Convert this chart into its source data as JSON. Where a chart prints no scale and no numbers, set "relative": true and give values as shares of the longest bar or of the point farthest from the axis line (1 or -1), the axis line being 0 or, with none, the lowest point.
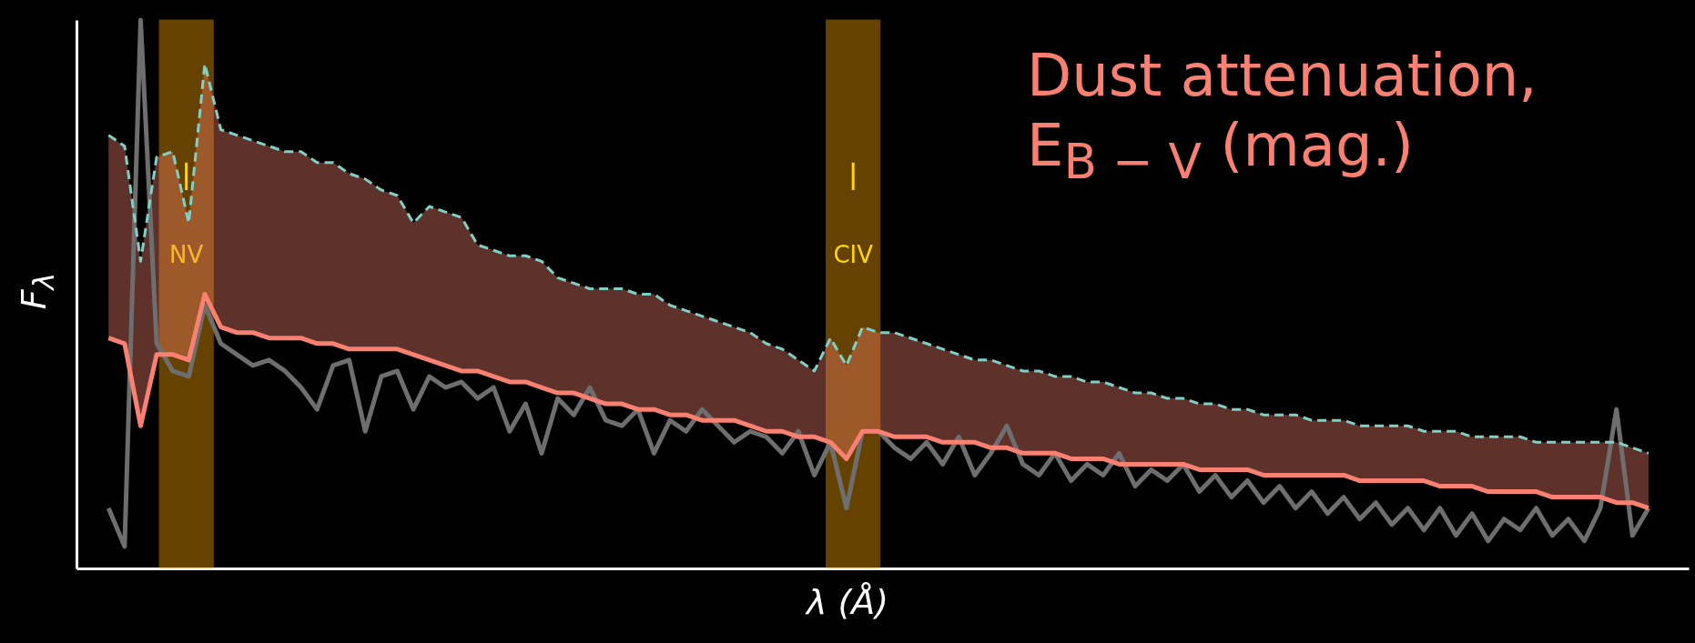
{
  "chart_data": {
    "type": "line",
    "relative": true,
    "xlabel": "λ (Å)",
    "ylabel": "F$_{λ}$",
    "grid": false,
    "categories": [
      null,
      null,
      null,
      null,
      null,
      null,
      null,
      null,
      null,
      null,
      null,
      null,
      null,
      null,
      null,
      null,
      null,
      null,
      null,
      null,
      null,
      null,
      null,
      null,
      null,
      null,
      null,
      null,
      null,
      null,
      null,
      null,
      null,
      null,
      null,
      null,
      null,
      null,
      null,
      null,
      null,
      null,
      null,
      null,
      null,
      null,
      null,
      null,
      null,
      null,
      null,
      null,
      null,
      null,
      null,
      null,
      null,
      null,
      null,
      null,
      null,
      null,
      null,
      null,
      null,
      null,
      null,
      null,
      null,
      null,
      null,
      null,
      null,
      null,
      null,
      null,
      null,
      null,
      null,
      null,
      null,
      null,
      null,
      null,
      null,
      null,
      null,
      null,
      null,
      null,
      null,
      null,
      null,
      null,
      null,
      null,
      null
    ],
    "series": [
      {
        "color": "#6e6e6e",
        "values": [
          0.11,
          0.04,
          1.0,
          0.41,
          0.36,
          0.35,
          0.48,
          0.41,
          0.39,
          0.37,
          0.38,
          0.36,
          0.33,
          0.29,
          0.37,
          0.38,
          0.25,
          0.35,
          0.36,
          0.29,
          0.35,
          0.33,
          0.34,
          0.31,
          0.33,
          0.25,
          0.3,
          0.21,
          0.31,
          0.28,
          0.33,
          0.27,
          0.26,
          0.29,
          0.21,
          0.27,
          0.25,
          0.29,
          0.26,
          0.23,
          0.25,
          0.24,
          0.21,
          0.25,
          0.17,
          0.23,
          0.11,
          0.25,
          0.25,
          0.22,
          0.2,
          0.23,
          0.19,
          0.24,
          0.17,
          0.21,
          0.26,
          0.19,
          0.17,
          0.21,
          0.16,
          0.19,
          0.17,
          0.21,
          0.15,
          0.18,
          0.16,
          0.19,
          0.14,
          0.17,
          0.13,
          0.16,
          0.12,
          0.15,
          0.11,
          0.14,
          0.1,
          0.13,
          0.09,
          0.12,
          0.08,
          0.11,
          0.07,
          0.11,
          0.06,
          0.1,
          0.05,
          0.09,
          0.07,
          0.11,
          0.06,
          0.09,
          0.05,
          0.11,
          0.29,
          0.06,
          0.11
        ]
      },
      {
        "color": "#7fd1c8",
        "line_style": "dashed",
        "values": [
          0.79,
          0.77,
          0.56,
          0.75,
          0.76,
          0.63,
          0.92,
          0.8,
          0.79,
          0.78,
          0.77,
          0.76,
          0.76,
          0.74,
          0.74,
          0.72,
          0.71,
          0.69,
          0.68,
          0.63,
          0.66,
          0.65,
          0.64,
          0.59,
          0.58,
          0.57,
          0.57,
          0.56,
          0.53,
          0.52,
          0.51,
          0.51,
          0.51,
          0.5,
          0.5,
          0.48,
          0.47,
          0.46,
          0.45,
          0.44,
          0.43,
          0.41,
          0.4,
          0.38,
          0.36,
          0.42,
          0.37,
          0.44,
          0.43,
          0.43,
          0.42,
          0.41,
          0.4,
          0.39,
          0.38,
          0.38,
          0.37,
          0.36,
          0.36,
          0.35,
          0.35,
          0.34,
          0.34,
          0.33,
          0.32,
          0.32,
          0.31,
          0.31,
          0.3,
          0.3,
          0.29,
          0.29,
          0.28,
          0.28,
          0.28,
          0.27,
          0.27,
          0.27,
          0.26,
          0.26,
          0.26,
          0.26,
          0.25,
          0.25,
          0.25,
          0.24,
          0.24,
          0.24,
          0.24,
          0.23,
          0.23,
          0.23,
          0.23,
          0.23,
          0.23,
          0.22,
          0.21
        ]
      },
      {
        "color": "#fa8072",
        "values": [
          0.42,
          0.41,
          0.26,
          0.39,
          0.39,
          0.38,
          0.5,
          0.44,
          0.43,
          0.43,
          0.42,
          0.42,
          0.42,
          0.41,
          0.41,
          0.4,
          0.4,
          0.4,
          0.4,
          0.39,
          0.38,
          0.37,
          0.36,
          0.36,
          0.35,
          0.34,
          0.34,
          0.33,
          0.32,
          0.32,
          0.31,
          0.3,
          0.3,
          0.29,
          0.29,
          0.28,
          0.28,
          0.27,
          0.27,
          0.27,
          0.26,
          0.25,
          0.25,
          0.24,
          0.24,
          0.23,
          0.2,
          0.25,
          0.25,
          0.24,
          0.24,
          0.24,
          0.23,
          0.23,
          0.23,
          0.22,
          0.22,
          0.21,
          0.21,
          0.21,
          0.2,
          0.2,
          0.2,
          0.19,
          0.19,
          0.19,
          0.19,
          0.19,
          0.18,
          0.18,
          0.18,
          0.18,
          0.17,
          0.17,
          0.17,
          0.17,
          0.17,
          0.17,
          0.16,
          0.16,
          0.16,
          0.16,
          0.16,
          0.15,
          0.15,
          0.15,
          0.14,
          0.14,
          0.14,
          0.14,
          0.13,
          0.13,
          0.13,
          0.13,
          0.12,
          0.12,
          0.11
        ],
        "lower": [
          0.42,
          0.41,
          0.26,
          0.39,
          0.39,
          0.38,
          0.5,
          0.44,
          0.43,
          0.43,
          0.42,
          0.42,
          0.42,
          0.41,
          0.41,
          0.4,
          0.4,
          0.4,
          0.4,
          0.39,
          0.38,
          0.37,
          0.36,
          0.36,
          0.35,
          0.34,
          0.34,
          0.33,
          0.32,
          0.32,
          0.31,
          0.3,
          0.3,
          0.29,
          0.29,
          0.28,
          0.28,
          0.27,
          0.27,
          0.27,
          0.26,
          0.25,
          0.25,
          0.24,
          0.24,
          0.23,
          0.2,
          0.25,
          0.25,
          0.24,
          0.24,
          0.24,
          0.23,
          0.23,
          0.23,
          0.22,
          0.22,
          0.21,
          0.21,
          0.21,
          0.2,
          0.2,
          0.2,
          0.19,
          0.19,
          0.19,
          0.19,
          0.19,
          0.18,
          0.18,
          0.18,
          0.18,
          0.17,
          0.17,
          0.17,
          0.17,
          0.17,
          0.17,
          0.16,
          0.16,
          0.16,
          0.16,
          0.16,
          0.15,
          0.15,
          0.15,
          0.14,
          0.14,
          0.14,
          0.14,
          0.13,
          0.13,
          0.13,
          0.13,
          0.12,
          0.12,
          0.11
        ],
        "upper": [
          0.79,
          0.77,
          0.56,
          0.75,
          0.76,
          0.63,
          0.92,
          0.8,
          0.79,
          0.78,
          0.77,
          0.76,
          0.76,
          0.74,
          0.74,
          0.72,
          0.71,
          0.69,
          0.68,
          0.63,
          0.66,
          0.65,
          0.64,
          0.59,
          0.58,
          0.57,
          0.57,
          0.56,
          0.53,
          0.52,
          0.51,
          0.51,
          0.51,
          0.5,
          0.5,
          0.48,
          0.47,
          0.46,
          0.45,
          0.44,
          0.43,
          0.41,
          0.4,
          0.38,
          0.36,
          0.42,
          0.37,
          0.44,
          0.43,
          0.43,
          0.42,
          0.41,
          0.4,
          0.39,
          0.38,
          0.38,
          0.37,
          0.36,
          0.36,
          0.35,
          0.35,
          0.34,
          0.34,
          0.33,
          0.32,
          0.32,
          0.31,
          0.31,
          0.3,
          0.3,
          0.29,
          0.29,
          0.28,
          0.28,
          0.28,
          0.27,
          0.27,
          0.27,
          0.26,
          0.26,
          0.26,
          0.26,
          0.25,
          0.25,
          0.25,
          0.24,
          0.24,
          0.24,
          0.24,
          0.23,
          0.23,
          0.23,
          0.23,
          0.23,
          0.23,
          0.22,
          0.21
        ]
      }
    ],
    "annotations": [
      "Dust attenuation, E$_{B − V}$ (mag.)",
      "NV",
      "CIV"
    ]
  }
}
